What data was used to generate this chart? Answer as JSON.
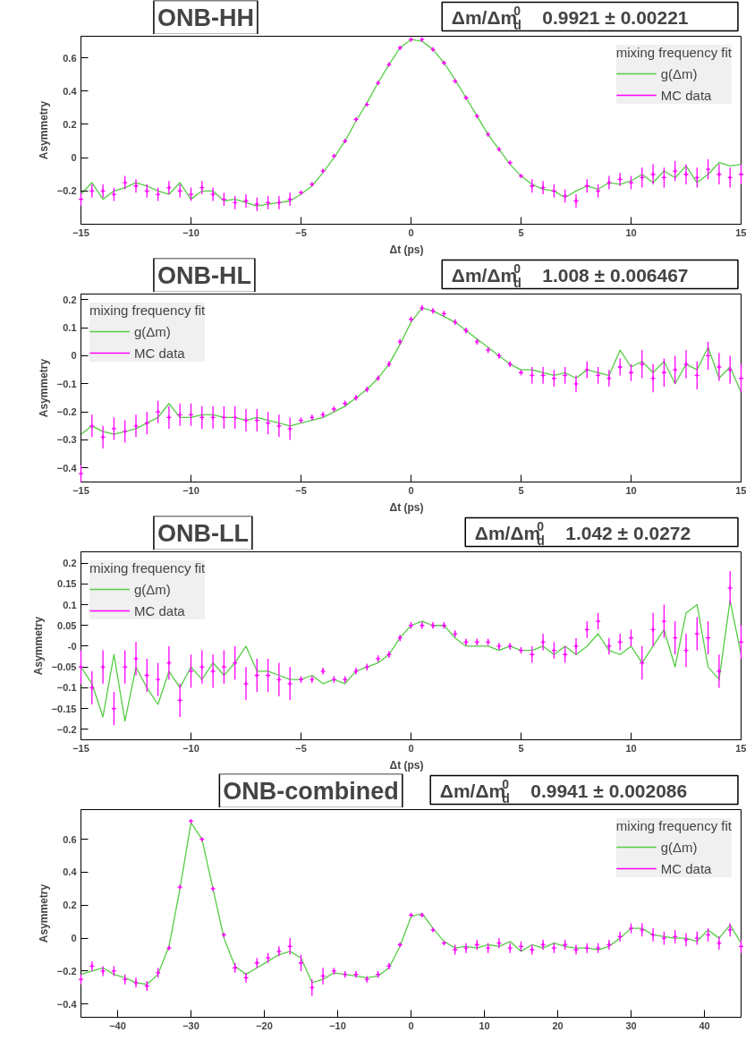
{
  "chart_data": [
    {
      "type": "line",
      "title": "ONB-HH",
      "annotations": [
        "Δm/Δm$_{d}$$^{0}$   0.9921 ± 0.00221"
      ],
      "xlabel": "Δt    (ps)",
      "ylabel": "Asymmetry",
      "legend_title": "mixing frequency fit",
      "legend": "top right",
      "grid": false,
      "xlim": [
        -15,
        15
      ],
      "xticks": [
        -15,
        -10,
        -5,
        0,
        5,
        10,
        15
      ],
      "ylim": [
        -0.4,
        0.73
      ],
      "yticks": [
        -0.2,
        {
          "value": 0,
          "label": "0"
        },
        0.2,
        0.4,
        0.6
      ],
      "x": [
        -15,
        -14.5,
        -14,
        -13.5,
        -13,
        -12.5,
        -12,
        -11.5,
        -11,
        -10.5,
        -10,
        -9.5,
        -9,
        -8.5,
        -8,
        -7.5,
        -7,
        -6.5,
        -6,
        -5.5,
        -5,
        -4.5,
        -4,
        -3.5,
        -3,
        -2.5,
        -2,
        -1.5,
        -1,
        -0.5,
        0,
        0.5,
        1,
        1.5,
        2,
        2.5,
        3,
        3.5,
        4,
        4.5,
        5,
        5.5,
        6,
        6.5,
        7,
        7.5,
        8,
        8.5,
        9,
        9.5,
        10,
        10.5,
        11,
        11.5,
        12,
        12.5,
        13,
        13.5,
        14,
        14.5,
        15
      ],
      "series": [
        {
          "name": "g(Δm)",
          "color": "#55cc44",
          "line_style": "solid",
          "values": [
            -0.22,
            -0.15,
            -0.25,
            -0.2,
            -0.18,
            -0.15,
            -0.17,
            -0.2,
            -0.22,
            -0.15,
            -0.25,
            -0.2,
            -0.2,
            -0.26,
            -0.25,
            -0.27,
            -0.29,
            -0.28,
            -0.27,
            -0.26,
            -0.22,
            -0.17,
            -0.09,
            0.0,
            0.1,
            0.22,
            0.33,
            0.45,
            0.56,
            0.66,
            0.71,
            0.7,
            0.65,
            0.57,
            0.47,
            0.36,
            0.25,
            0.14,
            0.05,
            -0.04,
            -0.11,
            -0.16,
            -0.19,
            -0.2,
            -0.24,
            -0.2,
            -0.17,
            -0.19,
            -0.15,
            -0.16,
            -0.14,
            -0.1,
            -0.15,
            -0.08,
            -0.12,
            -0.05,
            -0.15,
            -0.1,
            -0.03,
            -0.05,
            -0.04
          ]
        },
        {
          "name": "MC data",
          "type": "scatter",
          "color": "#ff00ff",
          "marker": "cross",
          "values": [
            -0.25,
            -0.2,
            -0.2,
            -0.22,
            -0.15,
            -0.17,
            -0.2,
            -0.22,
            -0.18,
            -0.2,
            -0.22,
            -0.18,
            -0.22,
            -0.25,
            -0.27,
            -0.26,
            -0.28,
            -0.27,
            -0.27,
            -0.25,
            -0.21,
            -0.16,
            -0.08,
            0.01,
            0.1,
            0.23,
            0.32,
            0.45,
            0.56,
            0.66,
            0.71,
            0.71,
            0.65,
            0.57,
            0.46,
            0.36,
            0.25,
            0.14,
            0.05,
            -0.03,
            -0.11,
            -0.17,
            -0.18,
            -0.2,
            -0.23,
            -0.26,
            -0.17,
            -0.2,
            -0.15,
            -0.13,
            -0.15,
            -0.12,
            -0.1,
            -0.12,
            -0.08,
            -0.1,
            -0.12,
            -0.07,
            -0.1,
            -0.12,
            -0.1
          ],
          "errors": [
            0.04,
            0.04,
            0.04,
            0.04,
            0.04,
            0.04,
            0.04,
            0.04,
            0.04,
            0.04,
            0.04,
            0.04,
            0.04,
            0.04,
            0.04,
            0.04,
            0.04,
            0.04,
            0.04,
            0.04,
            0.01,
            0.01,
            0.01,
            0.01,
            0.01,
            0.01,
            0.01,
            0.01,
            0.01,
            0.01,
            0.01,
            0.01,
            0.01,
            0.01,
            0.01,
            0.01,
            0.01,
            0.01,
            0.01,
            0.01,
            0.01,
            0.04,
            0.04,
            0.04,
            0.04,
            0.04,
            0.04,
            0.04,
            0.04,
            0.04,
            0.04,
            0.06,
            0.06,
            0.06,
            0.06,
            0.06,
            0.06,
            0.06,
            0.06,
            0.06,
            0.06
          ]
        }
      ]
    },
    {
      "type": "line",
      "title": "ONB-HL",
      "annotations": [
        "Δm/Δm$_{d}$$^{0}$   1.008 ± 0.006467"
      ],
      "xlabel": "Δt    (ps)",
      "ylabel": "Asymmetry",
      "legend_title": "mixing frequency fit",
      "legend": "top left",
      "grid": false,
      "xlim": [
        -15,
        15
      ],
      "xticks": [
        -15,
        -10,
        -5,
        0,
        5,
        10,
        15
      ],
      "ylim": [
        -0.45,
        0.22
      ],
      "yticks": [
        -0.4,
        -0.3,
        -0.2,
        -0.1,
        0,
        0.1,
        0.2
      ],
      "x": [
        -15,
        -14.5,
        -14,
        -13.5,
        -13,
        -12.5,
        -12,
        -11.5,
        -11,
        -10.5,
        -10,
        -9.5,
        -9,
        -8.5,
        -8,
        -7.5,
        -7,
        -6.5,
        -6,
        -5.5,
        -5,
        -4.5,
        -4,
        -3.5,
        -3,
        -2.5,
        -2,
        -1.5,
        -1,
        -0.5,
        0,
        0.5,
        1,
        1.5,
        2,
        2.5,
        3,
        3.5,
        4,
        4.5,
        5,
        5.5,
        6,
        6.5,
        7,
        7.5,
        8,
        8.5,
        9,
        9.5,
        10,
        10.5,
        11,
        11.5,
        12,
        12.5,
        13,
        13.5,
        14,
        14.5,
        15
      ],
      "series": [
        {
          "name": "g(Δm)",
          "color": "#55cc44",
          "line_style": "solid",
          "values": [
            -0.28,
            -0.25,
            -0.27,
            -0.28,
            -0.27,
            -0.26,
            -0.24,
            -0.22,
            -0.17,
            -0.22,
            -0.22,
            -0.21,
            -0.21,
            -0.22,
            -0.22,
            -0.23,
            -0.22,
            -0.23,
            -0.24,
            -0.25,
            -0.24,
            -0.23,
            -0.22,
            -0.2,
            -0.18,
            -0.15,
            -0.12,
            -0.08,
            -0.03,
            0.04,
            0.12,
            0.17,
            0.16,
            0.14,
            0.12,
            0.09,
            0.06,
            0.03,
            0.0,
            -0.03,
            -0.05,
            -0.05,
            -0.06,
            -0.07,
            -0.06,
            -0.08,
            -0.05,
            -0.06,
            -0.07,
            0.02,
            -0.04,
            -0.02,
            -0.06,
            -0.02,
            -0.1,
            -0.03,
            -0.05,
            0.03,
            -0.08,
            -0.04,
            -0.13
          ]
        },
        {
          "name": "MC data",
          "type": "scatter",
          "color": "#ff00ff",
          "marker": "cross",
          "values": [
            -0.42,
            -0.25,
            -0.29,
            -0.26,
            -0.27,
            -0.25,
            -0.24,
            -0.2,
            -0.22,
            -0.21,
            -0.21,
            -0.22,
            -0.22,
            -0.22,
            -0.22,
            -0.23,
            -0.23,
            -0.24,
            -0.25,
            -0.26,
            -0.23,
            -0.22,
            -0.21,
            -0.19,
            -0.17,
            -0.15,
            -0.12,
            -0.08,
            -0.03,
            0.05,
            0.13,
            0.17,
            0.16,
            0.15,
            0.12,
            0.09,
            0.05,
            0.02,
            0.0,
            -0.03,
            -0.06,
            -0.07,
            -0.07,
            -0.08,
            -0.07,
            -0.1,
            -0.05,
            -0.07,
            -0.08,
            -0.04,
            -0.06,
            -0.03,
            -0.08,
            -0.06,
            -0.05,
            -0.03,
            -0.07,
            0.0,
            -0.04,
            -0.05,
            -0.08
          ],
          "errors": [
            0.03,
            0.04,
            0.04,
            0.04,
            0.04,
            0.04,
            0.04,
            0.04,
            0.04,
            0.04,
            0.04,
            0.04,
            0.04,
            0.04,
            0.04,
            0.04,
            0.04,
            0.04,
            0.04,
            0.04,
            0.01,
            0.01,
            0.01,
            0.01,
            0.01,
            0.01,
            0.01,
            0.01,
            0.01,
            0.01,
            0.01,
            0.01,
            0.01,
            0.01,
            0.01,
            0.01,
            0.01,
            0.01,
            0.01,
            0.01,
            0.01,
            0.03,
            0.03,
            0.03,
            0.03,
            0.03,
            0.03,
            0.03,
            0.03,
            0.03,
            0.03,
            0.05,
            0.05,
            0.05,
            0.05,
            0.05,
            0.05,
            0.05,
            0.05,
            0.05,
            0.05
          ]
        }
      ]
    },
    {
      "type": "line",
      "title": "ONB-LL",
      "annotations": [
        "Δm/Δm$_{d}$$^{0}$   1.042 ± 0.0272"
      ],
      "xlabel": "Δt    (ps)",
      "ylabel": "Asymmetry",
      "legend_title": "mixing frequency fit",
      "legend": "top left",
      "grid": false,
      "xlim": [
        -15,
        15
      ],
      "xticks": [
        -15,
        -10,
        -5,
        0,
        5,
        10,
        15
      ],
      "ylim": [
        -0.225,
        0.227
      ],
      "yticks": [
        -0.2,
        -0.15,
        -0.1,
        -0.05,
        {
          "value": 0,
          "label": "-0"
        },
        0.05,
        0.1,
        0.15,
        0.2
      ],
      "x": [
        -15,
        -14.5,
        -14,
        -13.5,
        -13,
        -12.5,
        -12,
        -11.5,
        -11,
        -10.5,
        -10,
        -9.5,
        -9,
        -8.5,
        -8,
        -7.5,
        -7,
        -6.5,
        -6,
        -5.5,
        -5,
        -4.5,
        -4,
        -3.5,
        -3,
        -2.5,
        -2,
        -1.5,
        -1,
        -0.5,
        0,
        0.5,
        1,
        1.5,
        2,
        2.5,
        3,
        3.5,
        4,
        4.5,
        5,
        5.5,
        6,
        6.5,
        7,
        7.5,
        8,
        8.5,
        9,
        9.5,
        10,
        10.5,
        11,
        11.5,
        12,
        12.5,
        13,
        13.5,
        14,
        14.5,
        15
      ],
      "series": [
        {
          "name": "g(Δm)",
          "color": "#55cc44",
          "line_style": "solid",
          "values": [
            -0.05,
            -0.09,
            -0.17,
            -0.02,
            -0.18,
            -0.05,
            -0.1,
            -0.14,
            -0.06,
            -0.1,
            -0.05,
            -0.08,
            -0.04,
            -0.07,
            -0.04,
            0.0,
            -0.06,
            -0.06,
            -0.07,
            -0.08,
            -0.08,
            -0.07,
            -0.09,
            -0.08,
            -0.09,
            -0.06,
            -0.05,
            -0.04,
            -0.02,
            0.02,
            0.05,
            0.06,
            0.05,
            0.05,
            0.02,
            0.0,
            0.0,
            0.0,
            -0.01,
            0.0,
            -0.01,
            -0.01,
            0.0,
            -0.02,
            0.0,
            -0.02,
            0.0,
            0.03,
            -0.01,
            -0.02,
            0.0,
            -0.04,
            0.0,
            0.04,
            -0.05,
            0.08,
            0.1,
            -0.05,
            -0.08,
            0.11,
            -0.02
          ]
        },
        {
          "name": "MC data",
          "type": "scatter",
          "color": "#ff00ff",
          "marker": "cross",
          "values": [
            -0.05,
            -0.1,
            -0.05,
            -0.15,
            -0.05,
            -0.03,
            -0.07,
            -0.08,
            -0.04,
            -0.13,
            -0.06,
            -0.05,
            -0.06,
            -0.05,
            -0.04,
            -0.09,
            -0.07,
            -0.07,
            -0.08,
            -0.09,
            -0.08,
            -0.08,
            -0.06,
            -0.08,
            -0.08,
            -0.06,
            -0.05,
            -0.03,
            -0.02,
            0.02,
            0.05,
            0.05,
            0.05,
            0.05,
            0.03,
            0.01,
            0.01,
            0.01,
            0.0,
            0.0,
            -0.01,
            -0.02,
            0.01,
            -0.01,
            -0.02,
            0.0,
            0.04,
            0.06,
            0.0,
            0.01,
            0.02,
            -0.04,
            0.04,
            0.06,
            0.02,
            -0.01,
            0.03,
            0.02,
            -0.06,
            0.14,
            0.01
          ],
          "errors": [
            0.04,
            0.04,
            0.04,
            0.04,
            0.04,
            0.04,
            0.04,
            0.04,
            0.04,
            0.04,
            0.04,
            0.04,
            0.04,
            0.04,
            0.04,
            0.04,
            0.04,
            0.04,
            0.04,
            0.04,
            0.008,
            0.008,
            0.008,
            0.008,
            0.008,
            0.008,
            0.008,
            0.008,
            0.008,
            0.008,
            0.008,
            0.008,
            0.008,
            0.008,
            0.008,
            0.008,
            0.008,
            0.008,
            0.008,
            0.008,
            0.008,
            0.02,
            0.02,
            0.02,
            0.02,
            0.02,
            0.02,
            0.02,
            0.02,
            0.02,
            0.02,
            0.04,
            0.04,
            0.04,
            0.04,
            0.04,
            0.04,
            0.04,
            0.04,
            0.04,
            0.04
          ]
        }
      ]
    },
    {
      "type": "line",
      "title": "ONB-combined",
      "annotations": [
        "Δm/Δm$_{d}$$^{0}$   0.9941 ± 0.002086"
      ],
      "ylabel": "Asymmetry",
      "legend_title": "mixing frequency fit",
      "legend": "top right",
      "grid": false,
      "xlim": [
        -45,
        45
      ],
      "xticks": [
        -40,
        -30,
        -20,
        -10,
        0,
        10,
        20,
        30,
        40
      ],
      "ylim": [
        -0.48,
        0.78
      ],
      "yticks": [
        -0.4,
        -0.2,
        0,
        0.2,
        0.4,
        0.6
      ],
      "x": [
        -45,
        -43.5,
        -42,
        -40.5,
        -39,
        -37.5,
        -36,
        -34.5,
        -33,
        -31.5,
        -30,
        -28.5,
        -27,
        -25.5,
        -24,
        -22.5,
        -21,
        -19.5,
        -18,
        -16.5,
        -15,
        -13.5,
        -12,
        -10.5,
        -9,
        -7.5,
        -6,
        -4.5,
        -3,
        -1.5,
        0,
        1.5,
        3,
        4.5,
        6,
        7.5,
        9,
        10.5,
        12,
        13.5,
        15,
        16.5,
        18,
        19.5,
        21,
        22.5,
        24,
        25.5,
        27,
        28.5,
        30,
        31.5,
        33,
        34.5,
        36,
        37.5,
        39,
        40.5,
        42,
        43.5,
        45
      ],
      "series": [
        {
          "name": "g(Δm)",
          "color": "#55cc44",
          "line_style": "solid",
          "values": [
            -0.22,
            -0.2,
            -0.18,
            -0.22,
            -0.24,
            -0.27,
            -0.28,
            -0.22,
            -0.05,
            0.3,
            0.7,
            0.6,
            0.3,
            0.0,
            -0.17,
            -0.22,
            -0.18,
            -0.14,
            -0.1,
            -0.08,
            -0.12,
            -0.27,
            -0.25,
            -0.21,
            -0.22,
            -0.23,
            -0.24,
            -0.23,
            -0.18,
            -0.05,
            0.13,
            0.15,
            0.06,
            -0.02,
            -0.06,
            -0.05,
            -0.06,
            -0.04,
            -0.05,
            -0.02,
            -0.08,
            -0.04,
            -0.06,
            -0.03,
            -0.05,
            -0.06,
            -0.06,
            -0.07,
            -0.05,
            0.0,
            0.06,
            0.06,
            0.02,
            0.01,
            0.0,
            0.0,
            -0.02,
            0.05,
            0.0,
            0.08,
            -0.03
          ]
        },
        {
          "name": "MC data",
          "type": "scatter",
          "color": "#ff00ff",
          "marker": "cross",
          "values": [
            -0.25,
            -0.17,
            -0.2,
            -0.2,
            -0.25,
            -0.27,
            -0.29,
            -0.21,
            -0.06,
            0.31,
            0.71,
            0.6,
            0.3,
            0.02,
            -0.18,
            -0.24,
            -0.15,
            -0.12,
            -0.08,
            -0.05,
            -0.15,
            -0.3,
            -0.23,
            -0.2,
            -0.22,
            -0.22,
            -0.25,
            -0.22,
            -0.17,
            -0.04,
            0.14,
            0.14,
            0.05,
            -0.03,
            -0.07,
            -0.06,
            -0.04,
            -0.06,
            -0.03,
            -0.06,
            -0.05,
            -0.07,
            -0.04,
            -0.06,
            -0.04,
            -0.07,
            -0.06,
            -0.06,
            -0.04,
            0.01,
            0.06,
            0.05,
            0.02,
            0.0,
            0.01,
            -0.01,
            0.0,
            0.02,
            -0.03,
            0.05,
            -0.05
          ],
          "errors": [
            0.03,
            0.03,
            0.03,
            0.03,
            0.03,
            0.03,
            0.03,
            0.03,
            0.01,
            0.01,
            0.01,
            0.01,
            0.01,
            0.01,
            0.03,
            0.03,
            0.03,
            0.03,
            0.03,
            0.05,
            0.05,
            0.05,
            0.05,
            0.02,
            0.02,
            0.02,
            0.02,
            0.02,
            0.02,
            0.01,
            0.01,
            0.01,
            0.01,
            0.01,
            0.03,
            0.03,
            0.03,
            0.03,
            0.03,
            0.03,
            0.03,
            0.03,
            0.03,
            0.03,
            0.03,
            0.03,
            0.03,
            0.03,
            0.03,
            0.03,
            0.03,
            0.04,
            0.04,
            0.04,
            0.04,
            0.04,
            0.04,
            0.04,
            0.04,
            0.04,
            0.04
          ]
        }
      ]
    }
  ]
}
